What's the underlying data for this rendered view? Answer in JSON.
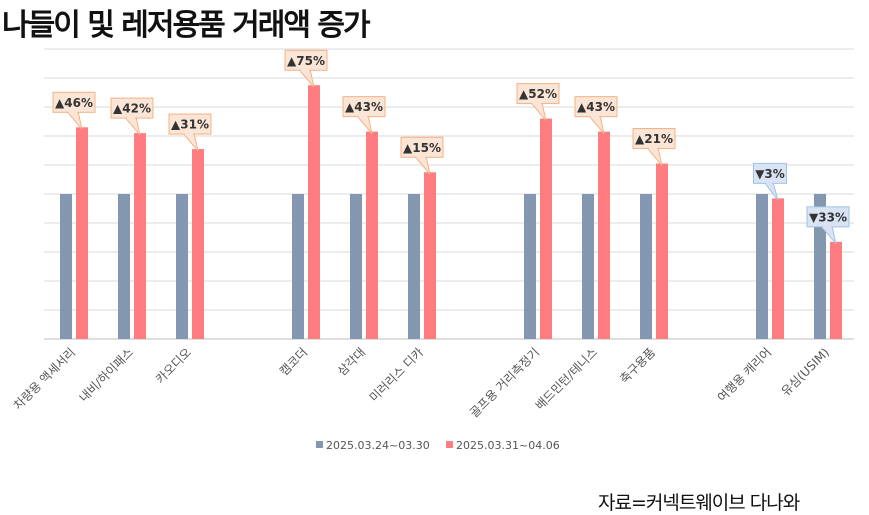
{
  "title": "나들이 및 레저용품 거래액 증가",
  "source": "자료=커넥트웨이브 다나와",
  "colors": {
    "baseline": "#8497b0",
    "current": "#ff7c80",
    "up_callout_fill": "#fbe5d6",
    "up_callout_stroke": "#f4b183",
    "down_callout_fill": "#dae3f3",
    "down_callout_stroke": "#9dc3e6"
  },
  "chart_data": {
    "type": "bar",
    "categories": [
      "차량용 액세서리",
      "내비/하이패스",
      "카오디오",
      "캠코더",
      "삼각대",
      "미러리스 디카",
      "골프용 거리측정기",
      "배드민턴/테니스",
      "축구용품",
      "여행용 캐리어",
      "유심(USIM)"
    ],
    "groups": [
      [
        0,
        1,
        2
      ],
      [
        3,
        4,
        5
      ],
      [
        6,
        7,
        8
      ],
      [
        9,
        10
      ]
    ],
    "series": [
      {
        "name": "2025.03.24~03.30",
        "values": [
          100,
          100,
          100,
          100,
          100,
          100,
          100,
          100,
          100,
          100,
          100
        ]
      },
      {
        "name": "2025.03.31~04.06",
        "values": [
          146,
          142,
          131,
          175,
          143,
          115,
          152,
          143,
          121,
          97,
          67
        ]
      }
    ],
    "annotations": [
      "▲46%",
      "▲42%",
      "▲31%",
      "▲75%",
      "▲43%",
      "▲15%",
      "▲52%",
      "▲43%",
      "▲21%",
      "▼3%",
      "▼33%"
    ],
    "ylim": [
      0,
      200
    ],
    "gridlines": 10,
    "grid": true,
    "legend": "bottom"
  }
}
